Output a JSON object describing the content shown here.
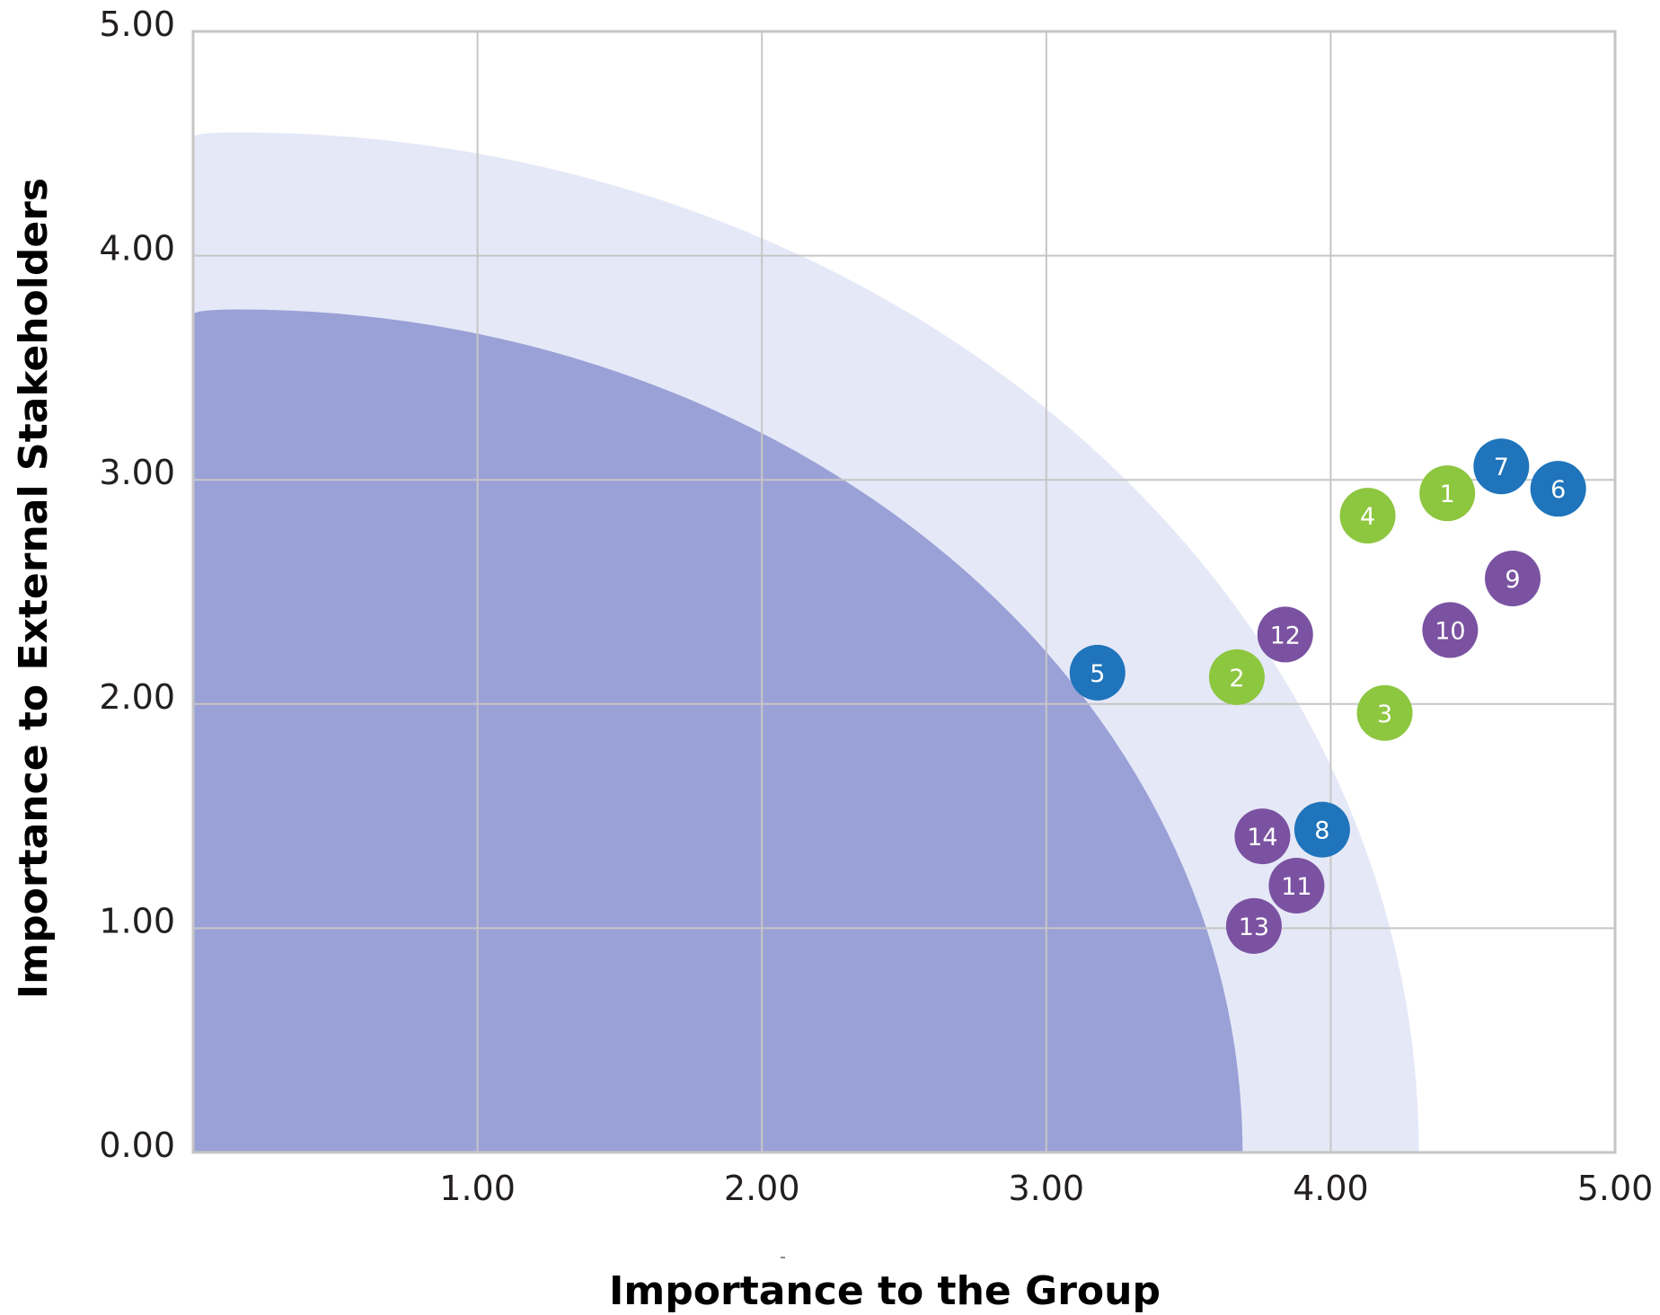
{
  "chart_data": {
    "type": "scatter",
    "title": "",
    "xlabel": "Importance to the Group",
    "ylabel": "Importance to External Stakeholders",
    "xlim": [
      0,
      5
    ],
    "ylim": [
      0,
      5
    ],
    "grid": true,
    "x_ticks": [
      "1.00",
      "2.00",
      "3.00",
      "4.00",
      "5.00"
    ],
    "y_ticks": [
      "0.00",
      "1.00",
      "2.00",
      "3.00",
      "4.00",
      "5.00"
    ],
    "legend": null,
    "zones": [
      {
        "name": "inner-zone",
        "shape": "quarter-ellipse",
        "x_radius": 3.69,
        "y_radius": 3.76,
        "color": "#9aa1d6"
      },
      {
        "name": "outer-zone",
        "shape": "quarter-ellipse",
        "x_radius": 4.31,
        "y_radius": 4.55,
        "color": "#e5e8f7"
      }
    ],
    "series": [
      {
        "name": "green",
        "color": "#8dc63f",
        "points": [
          {
            "label": "1",
            "x": 4.41,
            "y": 2.94
          },
          {
            "label": "2",
            "x": 3.67,
            "y": 2.12
          },
          {
            "label": "3",
            "x": 4.19,
            "y": 1.96
          },
          {
            "label": "4",
            "x": 4.13,
            "y": 2.84
          }
        ]
      },
      {
        "name": "blue",
        "color": "#1f74bb",
        "points": [
          {
            "label": "5",
            "x": 3.18,
            "y": 2.14
          },
          {
            "label": "6",
            "x": 4.8,
            "y": 2.96
          },
          {
            "label": "7",
            "x": 4.6,
            "y": 3.06
          },
          {
            "label": "8",
            "x": 3.97,
            "y": 1.44
          }
        ]
      },
      {
        "name": "purple",
        "color": "#7b52a1",
        "points": [
          {
            "label": "9",
            "x": 4.64,
            "y": 2.56
          },
          {
            "label": "10",
            "x": 4.42,
            "y": 2.33
          },
          {
            "label": "11",
            "x": 3.88,
            "y": 1.19
          },
          {
            "label": "12",
            "x": 3.84,
            "y": 2.31
          },
          {
            "label": "13",
            "x": 3.73,
            "y": 1.01
          },
          {
            "label": "14",
            "x": 3.76,
            "y": 1.41
          }
        ]
      }
    ]
  },
  "colors": {
    "grid": "#c6c6c6",
    "inner_zone": "#9aa1d6",
    "outer_zone": "#e5e8f7",
    "text": "#231f20"
  }
}
